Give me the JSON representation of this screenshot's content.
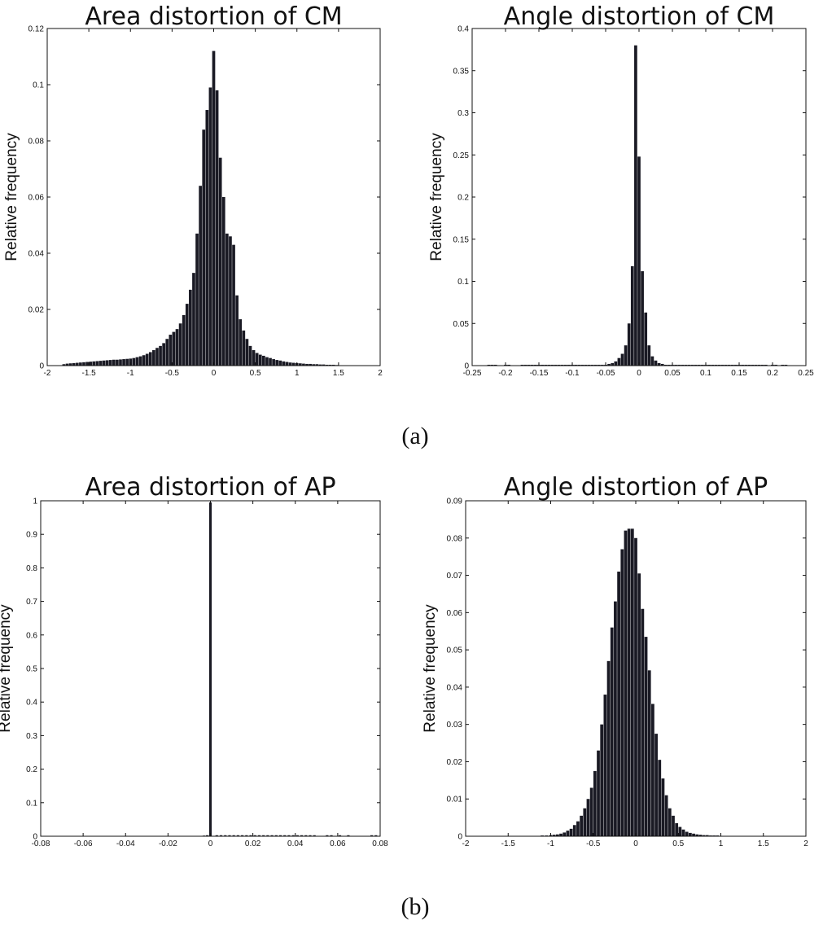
{
  "figure": {
    "caption_a": "(a)",
    "caption_b": "(b)"
  },
  "chart_data": [
    {
      "type": "bar",
      "title": "Area distortion of CM",
      "xlabel": "",
      "ylabel": "Relative frequency",
      "xlim": [
        -2,
        2
      ],
      "ylim": [
        0,
        0.12
      ],
      "xticks": [
        -2,
        -1.5,
        -1,
        -0.5,
        0,
        0.5,
        1,
        1.5,
        2
      ],
      "xtick_labels": [
        "-2",
        "-1.5",
        "-1",
        "-0.5",
        "0",
        "0.5",
        "1",
        "1.5",
        "2"
      ],
      "yticks": [
        0,
        0.02,
        0.04,
        0.06,
        0.08,
        0.1,
        0.12
      ],
      "ytick_labels": [
        "0",
        "0.02",
        "0.04",
        "0.06",
        "0.08",
        "0.1",
        "0.12"
      ],
      "bin_width": 0.036,
      "x": [
        -1.8,
        -1.76,
        -1.72,
        -1.68,
        -1.64,
        -1.6,
        -1.56,
        -1.52,
        -1.48,
        -1.44,
        -1.4,
        -1.36,
        -1.32,
        -1.28,
        -1.24,
        -1.2,
        -1.16,
        -1.12,
        -1.08,
        -1.04,
        -1.0,
        -0.96,
        -0.92,
        -0.88,
        -0.84,
        -0.8,
        -0.76,
        -0.72,
        -0.68,
        -0.64,
        -0.6,
        -0.56,
        -0.52,
        -0.48,
        -0.44,
        -0.4,
        -0.36,
        -0.32,
        -0.28,
        -0.24,
        -0.2,
        -0.16,
        -0.12,
        -0.08,
        -0.04,
        0.0,
        0.04,
        0.08,
        0.12,
        0.16,
        0.2,
        0.24,
        0.28,
        0.32,
        0.36,
        0.4,
        0.44,
        0.48,
        0.52,
        0.56,
        0.6,
        0.64,
        0.68,
        0.72,
        0.76,
        0.8,
        0.84,
        0.88,
        0.92,
        0.96,
        1.0,
        1.04,
        1.08,
        1.12,
        1.16,
        1.2,
        1.24,
        1.28,
        1.32,
        1.36,
        1.4,
        1.44,
        1.48
      ],
      "values": [
        0.0005,
        0.0007,
        0.0008,
        0.0009,
        0.001,
        0.0011,
        0.0012,
        0.0013,
        0.0014,
        0.0015,
        0.0016,
        0.0017,
        0.0018,
        0.0019,
        0.002,
        0.0021,
        0.0021,
        0.0022,
        0.0023,
        0.0024,
        0.0025,
        0.0027,
        0.003,
        0.0033,
        0.0037,
        0.0042,
        0.0048,
        0.0055,
        0.0063,
        0.007,
        0.008,
        0.0095,
        0.011,
        0.012,
        0.013,
        0.015,
        0.018,
        0.022,
        0.027,
        0.033,
        0.047,
        0.064,
        0.084,
        0.091,
        0.099,
        0.112,
        0.098,
        0.074,
        0.06,
        0.047,
        0.046,
        0.043,
        0.025,
        0.0165,
        0.0125,
        0.0095,
        0.007,
        0.0055,
        0.0045,
        0.0039,
        0.0035,
        0.003,
        0.0027,
        0.0023,
        0.002,
        0.0018,
        0.0015,
        0.0013,
        0.0011,
        0.001,
        0.0009,
        0.0008,
        0.0007,
        0.0006,
        0.0006,
        0.0005,
        0.0005,
        0.0004,
        0.0004,
        0.0003,
        0.0003,
        0.0003,
        0.0002
      ]
    },
    {
      "type": "bar",
      "title": "Angle distortion of CM",
      "xlabel": "",
      "ylabel": "Relative frequency",
      "xlim": [
        -0.25,
        0.25
      ],
      "ylim": [
        0,
        0.4
      ],
      "xticks": [
        -0.25,
        -0.2,
        -0.15,
        -0.1,
        -0.05,
        0,
        0.05,
        0.1,
        0.15,
        0.2,
        0.25
      ],
      "xtick_labels": [
        "-0.25",
        "-0.2",
        "-0.15",
        "-0.1",
        "-0.05",
        "0",
        "0.05",
        "0.1",
        "0.15",
        "0.2",
        "0.25"
      ],
      "yticks": [
        0,
        0.05,
        0.1,
        0.15,
        0.2,
        0.25,
        0.3,
        0.35,
        0.4
      ],
      "ytick_labels": [
        "0",
        "0.05",
        "0.1",
        "0.15",
        "0.2",
        "0.25",
        "0.3",
        "0.35",
        "0.4"
      ],
      "bin_width": 0.0045,
      "x": [
        -0.225,
        -0.22,
        -0.215,
        -0.2,
        -0.195,
        -0.175,
        -0.17,
        -0.165,
        -0.16,
        -0.155,
        -0.15,
        -0.145,
        -0.14,
        -0.135,
        -0.13,
        -0.125,
        -0.12,
        -0.115,
        -0.11,
        -0.105,
        -0.1,
        -0.095,
        -0.09,
        -0.085,
        -0.08,
        -0.075,
        -0.07,
        -0.065,
        -0.06,
        -0.055,
        -0.05,
        -0.045,
        -0.04,
        -0.035,
        -0.03,
        -0.025,
        -0.02,
        -0.015,
        -0.01,
        -0.005,
        0.0,
        0.005,
        0.01,
        0.015,
        0.02,
        0.025,
        0.03,
        0.035,
        0.04,
        0.045,
        0.05,
        0.055,
        0.06,
        0.065,
        0.07,
        0.075,
        0.08,
        0.085,
        0.09,
        0.095,
        0.1,
        0.105,
        0.11,
        0.115,
        0.12,
        0.125,
        0.13,
        0.135,
        0.14,
        0.145,
        0.15,
        0.155,
        0.16,
        0.165,
        0.17,
        0.175,
        0.18,
        0.185,
        0.19,
        0.2,
        0.205,
        0.215,
        0.22
      ],
      "values": [
        0.001,
        0.001,
        0.001,
        0.001,
        0.001,
        0.001,
        0.001,
        0.001,
        0.001,
        0.001,
        0.001,
        0.001,
        0.001,
        0.001,
        0.001,
        0.001,
        0.001,
        0.001,
        0.001,
        0.001,
        0.001,
        0.001,
        0.001,
        0.001,
        0.001,
        0.001,
        0.001,
        0.001,
        0.001,
        0.001,
        0.001,
        0.002,
        0.003,
        0.005,
        0.009,
        0.014,
        0.024,
        0.05,
        0.118,
        0.38,
        0.248,
        0.112,
        0.063,
        0.024,
        0.011,
        0.006,
        0.003,
        0.002,
        0.001,
        0.001,
        0.001,
        0.001,
        0.001,
        0.001,
        0.001,
        0.001,
        0.001,
        0.001,
        0.001,
        0.001,
        0.001,
        0.001,
        0.001,
        0.001,
        0.001,
        0.001,
        0.001,
        0.001,
        0.001,
        0.001,
        0.001,
        0.001,
        0.001,
        0.001,
        0.001,
        0.001,
        0.001,
        0.001,
        0.001,
        0.001,
        0.001,
        0.001,
        0.001
      ]
    },
    {
      "type": "bar",
      "title": "Area distortion of AP",
      "xlabel": "",
      "ylabel": "Relative frequency",
      "xlim": [
        -0.08,
        0.08
      ],
      "ylim": [
        0,
        1
      ],
      "xticks": [
        -0.08,
        -0.06,
        -0.04,
        -0.02,
        0,
        0.02,
        0.04,
        0.06,
        0.08
      ],
      "xtick_labels": [
        "-0.08",
        "-0.06",
        "-0.04",
        "-0.02",
        "0",
        "0.02",
        "0.04",
        "0.06",
        "0.08"
      ],
      "yticks": [
        0,
        0.1,
        0.2,
        0.3,
        0.4,
        0.5,
        0.6,
        0.7,
        0.8,
        0.9,
        1
      ],
      "ytick_labels": [
        "0",
        "0.1",
        "0.2",
        "0.3",
        "0.4",
        "0.5",
        "0.6",
        "0.7",
        "0.8",
        "0.9",
        "1"
      ],
      "bin_width": 0.0012,
      "x": [
        -0.003,
        -0.0015,
        0.0,
        0.003,
        0.005,
        0.007,
        0.009,
        0.011,
        0.013,
        0.015,
        0.017,
        0.019,
        0.021,
        0.023,
        0.025,
        0.027,
        0.029,
        0.031,
        0.033,
        0.035,
        0.037,
        0.039,
        0.041,
        0.043,
        0.045,
        0.047,
        0.049,
        0.055,
        0.057,
        0.061,
        0.065,
        0.076,
        0.078
      ],
      "values": [
        0.002,
        0.003,
        0.995,
        0.003,
        0.003,
        0.003,
        0.003,
        0.003,
        0.003,
        0.003,
        0.003,
        0.003,
        0.003,
        0.003,
        0.003,
        0.003,
        0.003,
        0.003,
        0.003,
        0.003,
        0.003,
        0.003,
        0.003,
        0.003,
        0.003,
        0.003,
        0.003,
        0.003,
        0.003,
        0.003,
        0.003,
        0.003,
        0.003
      ]
    },
    {
      "type": "bar",
      "title": "Angle distortion of AP",
      "xlabel": "",
      "ylabel": "Relative frequency",
      "xlim": [
        -2,
        2
      ],
      "ylim": [
        0,
        0.09
      ],
      "xticks": [
        -2,
        -1.5,
        -1,
        -0.5,
        0,
        0.5,
        1,
        1.5,
        2
      ],
      "xtick_labels": [
        "-2",
        "-1.5",
        "-1",
        "-0.5",
        "0",
        "0.5",
        "1",
        "1.5",
        "2"
      ],
      "yticks": [
        0,
        0.01,
        0.02,
        0.03,
        0.04,
        0.05,
        0.06,
        0.07,
        0.08,
        0.09
      ],
      "ytick_labels": [
        "0",
        "0.01",
        "0.02",
        "0.03",
        "0.04",
        "0.05",
        "0.06",
        "0.07",
        "0.08",
        "0.09"
      ],
      "bin_width": 0.036,
      "x": [
        -1.3,
        -1.25,
        -1.2,
        -1.15,
        -1.1,
        -1.05,
        -1.0,
        -0.96,
        -0.92,
        -0.88,
        -0.84,
        -0.8,
        -0.76,
        -0.72,
        -0.68,
        -0.64,
        -0.6,
        -0.56,
        -0.52,
        -0.48,
        -0.44,
        -0.4,
        -0.36,
        -0.32,
        -0.28,
        -0.24,
        -0.2,
        -0.16,
        -0.12,
        -0.08,
        -0.04,
        0.0,
        0.04,
        0.08,
        0.12,
        0.16,
        0.2,
        0.24,
        0.28,
        0.32,
        0.36,
        0.4,
        0.44,
        0.48,
        0.52,
        0.56,
        0.6,
        0.64,
        0.68,
        0.72,
        0.76,
        0.8,
        0.84,
        0.88,
        0.92,
        0.96,
        1.0,
        1.05,
        1.1,
        1.15,
        1.2,
        1.25,
        1.3,
        1.35,
        1.4,
        1.45,
        1.5,
        1.55,
        1.6,
        1.65,
        1.7
      ],
      "values": [
        0.0001,
        0.0001,
        0.0001,
        0.0001,
        0.0002,
        0.0002,
        0.0003,
        0.0004,
        0.0005,
        0.0007,
        0.001,
        0.0015,
        0.002,
        0.003,
        0.004,
        0.0055,
        0.0075,
        0.01,
        0.013,
        0.0175,
        0.023,
        0.03,
        0.038,
        0.047,
        0.056,
        0.063,
        0.071,
        0.077,
        0.082,
        0.0825,
        0.0825,
        0.08,
        0.0705,
        0.061,
        0.0535,
        0.0445,
        0.0355,
        0.0275,
        0.0205,
        0.0155,
        0.011,
        0.0075,
        0.0055,
        0.0035,
        0.0025,
        0.0018,
        0.0012,
        0.0009,
        0.0007,
        0.0005,
        0.0004,
        0.0003,
        0.0003,
        0.0002,
        0.0002,
        0.0002,
        0.0001,
        0.0001,
        0.0001,
        0.0001,
        0.0001,
        0.0001,
        0.0001,
        0.0001,
        0.0001,
        0.0001,
        0.0001,
        0.0001,
        0.0001,
        0.0001,
        0.0001
      ]
    }
  ]
}
